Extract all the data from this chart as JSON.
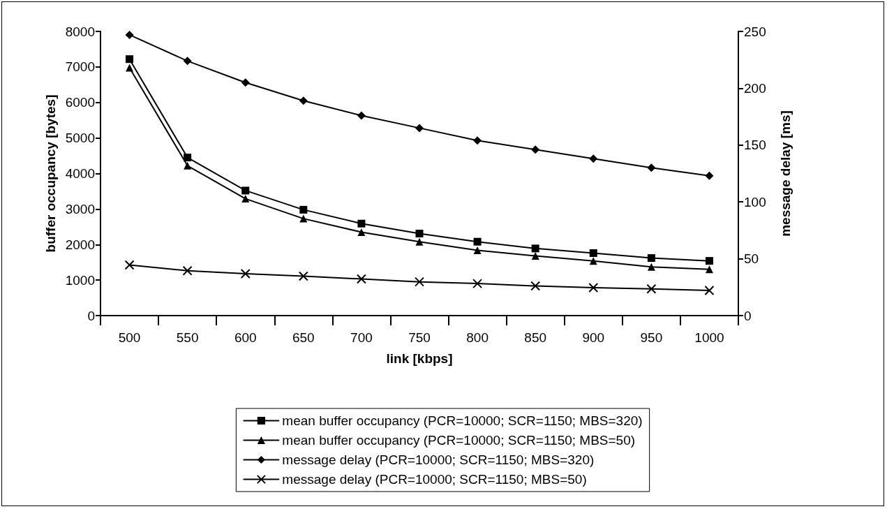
{
  "chart_data": {
    "type": "line",
    "xlabel": "link [kbps]",
    "ylabel": "buffer occupancy [bytes]",
    "y2label": "message delay [ms]",
    "categories": [
      "500",
      "550",
      "600",
      "650",
      "700",
      "750",
      "800",
      "850",
      "900",
      "950",
      "1000"
    ],
    "series": [
      {
        "name": "mean buffer occupancy (PCR=10000; SCR=1150; MBS=320)",
        "color": "#000000",
        "marker": "square",
        "values": [
          7220,
          4450,
          3520,
          2980,
          2590,
          2310,
          2080,
          1890,
          1760,
          1620,
          1540
        ]
      },
      {
        "name": "mean buffer occupancy (PCR=10000; SCR=1150; MBS=50)",
        "color": "#000000",
        "marker": "triangle",
        "values": [
          6980,
          4220,
          3290,
          2730,
          2350,
          2080,
          1840,
          1680,
          1540,
          1370,
          1300
        ]
      },
      {
        "name": "message delay (PCR=10000; SCR=1150; MBS=320)",
        "color": "#000000",
        "marker": "diamond",
        "axis": "y2",
        "values": [
          247,
          224,
          205,
          189,
          176,
          165,
          154,
          146,
          138,
          130,
          123
        ]
      },
      {
        "name": "message delay (PCR=10000; SCR=1150; MBS=50)",
        "color": "#000000",
        "marker": "cross",
        "axis": "y2",
        "values": [
          44.5,
          39.5,
          36.9,
          34.7,
          32.2,
          29.7,
          28.2,
          26.1,
          24.6,
          23.5,
          22.1
        ]
      }
    ],
    "ylim": [
      0,
      8000
    ],
    "yticks": [
      0,
      1000,
      2000,
      3000,
      4000,
      5000,
      6000,
      7000,
      8000
    ],
    "y2lim": [
      0,
      250
    ],
    "y2ticks": [
      0,
      50,
      100,
      150,
      200,
      250
    ],
    "grid": false,
    "legend": "bottom",
    "line_style": "solid"
  }
}
